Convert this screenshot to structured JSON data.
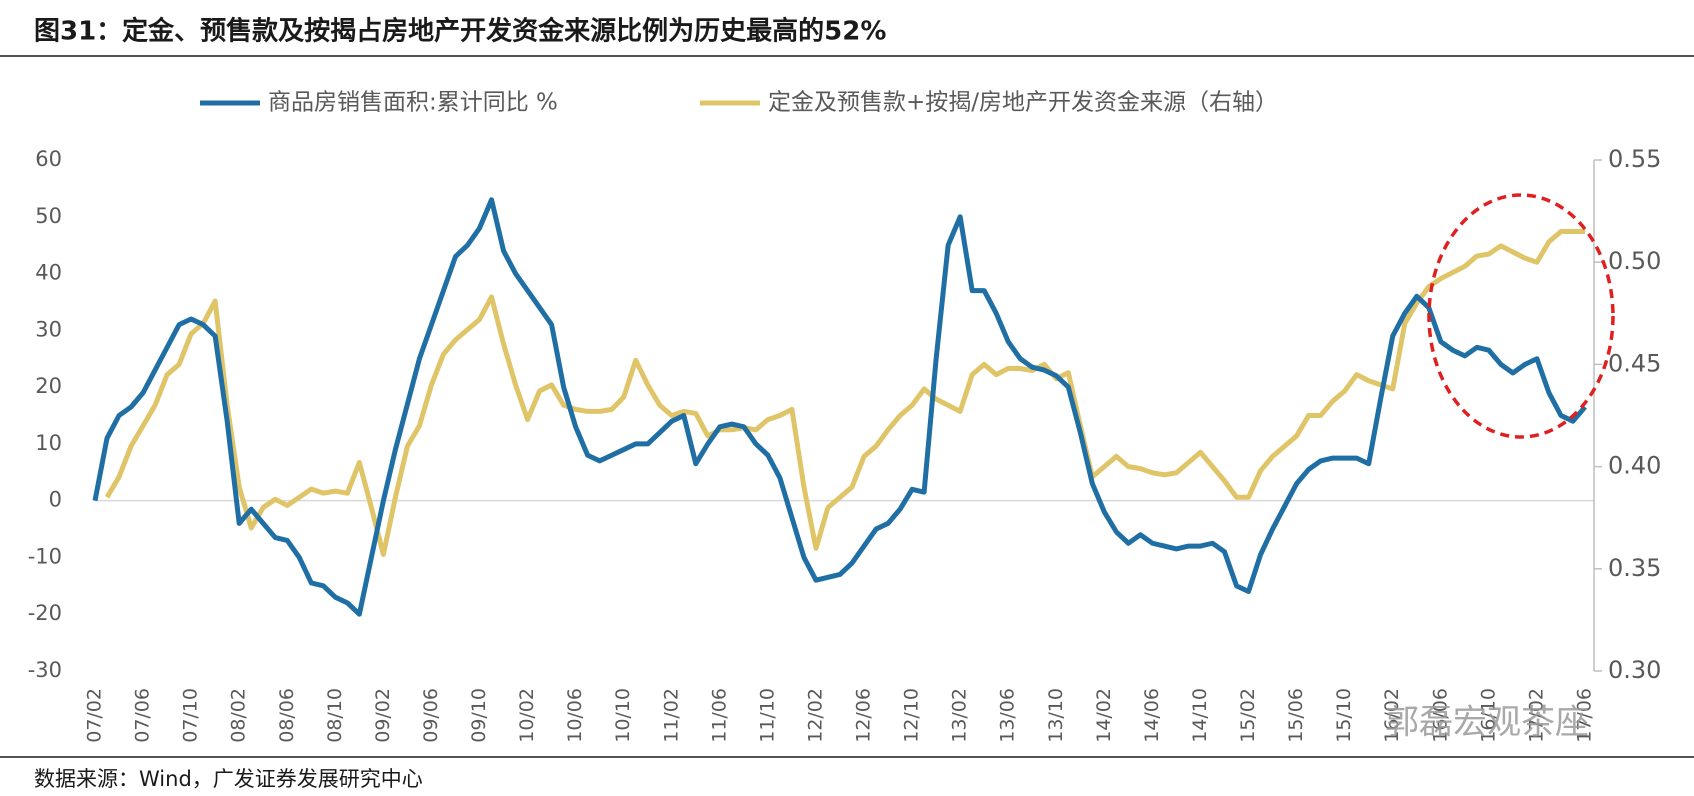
{
  "chart_data": {
    "type": "line",
    "title": "图31：定金、预售款及按揭占房地产开发资金来源比例为历史最高的52%",
    "source": "数据来源：Wind，广发证券发展研究中心",
    "watermark": "郭磊宏观茶座",
    "categories": [
      "07/02",
      null,
      null,
      null,
      "07/06",
      null,
      null,
      null,
      "07/10",
      null,
      null,
      null,
      "08/02",
      null,
      null,
      null,
      "08/06",
      null,
      null,
      null,
      "08/10",
      null,
      null,
      null,
      "09/02",
      null,
      null,
      null,
      "09/06",
      null,
      null,
      null,
      "09/10",
      null,
      null,
      null,
      "10/02",
      null,
      null,
      null,
      "10/06",
      null,
      null,
      null,
      "10/10",
      null,
      null,
      null,
      "11/02",
      null,
      null,
      null,
      "11/06",
      null,
      null,
      null,
      "11/10",
      null,
      null,
      null,
      "12/02",
      null,
      null,
      null,
      "12/06",
      null,
      null,
      null,
      "12/10",
      null,
      null,
      null,
      "13/02",
      null,
      null,
      null,
      "13/06",
      null,
      null,
      null,
      "13/10",
      null,
      null,
      null,
      "14/02",
      null,
      null,
      null,
      "14/06",
      null,
      null,
      null,
      "14/10",
      null,
      null,
      null,
      "15/02",
      null,
      null,
      null,
      "15/06",
      null,
      null,
      null,
      "15/10",
      null,
      null,
      null,
      "16/02",
      null,
      null,
      null,
      "16/06",
      null,
      null,
      null,
      "16/10",
      null,
      null,
      null,
      "17/02",
      null,
      null,
      null,
      "17/06"
    ],
    "series": [
      {
        "name": "商品房销售面积:累计同比 %",
        "color": "#1f6fa5",
        "axis": "y",
        "values": [
          0,
          11,
          15,
          16.5,
          19,
          23,
          27,
          31,
          32,
          31,
          29,
          14,
          -4,
          -1.5,
          -4,
          -6.5,
          -7,
          -10,
          -14.5,
          -15,
          -17,
          -18,
          -20,
          -10,
          0,
          9,
          17,
          25,
          31,
          37,
          43,
          45,
          48,
          53,
          44,
          40,
          37,
          34,
          31,
          20,
          13,
          8,
          7,
          8,
          9,
          10,
          10,
          12,
          14,
          15,
          6.5,
          10,
          13,
          13.5,
          13,
          10,
          8,
          4,
          -3,
          -10,
          -14,
          -13.5,
          -13,
          -11,
          -8,
          -5,
          -4,
          -1.5,
          2,
          1.5,
          25,
          45,
          50,
          37,
          37,
          33,
          28,
          25,
          23.5,
          23,
          22,
          20,
          12,
          3,
          -2,
          -5.5,
          -7.5,
          -6,
          -7.5,
          -8,
          -8.5,
          -8,
          -8,
          -7.5,
          -9,
          -15,
          -16,
          -9.5,
          -5,
          -1,
          3,
          5.5,
          7,
          7.5,
          7.5,
          7.5,
          6.5,
          18,
          29,
          33,
          36,
          34,
          28,
          26.5,
          25.5,
          27,
          26.5,
          24,
          22.5,
          24,
          25,
          19,
          15,
          14,
          16.5
        ]
      },
      {
        "name": "定金及预售款+按揭/房地产开发资金来源（右轴）",
        "color": "#e0c468",
        "axis": "y2",
        "values": [
          null,
          0.385,
          0.395,
          0.41,
          0.42,
          0.43,
          0.445,
          0.45,
          0.465,
          0.47,
          0.481,
          0.43,
          0.39,
          0.37,
          0.38,
          0.384,
          0.381,
          0.385,
          0.389,
          0.387,
          0.388,
          0.387,
          0.402,
          0.38,
          0.357,
          0.385,
          0.41,
          0.42,
          0.44,
          0.455,
          0.462,
          0.467,
          0.472,
          0.483,
          0.46,
          0.44,
          0.423,
          0.437,
          0.44,
          0.43,
          0.428,
          0.427,
          0.427,
          0.428,
          0.434,
          0.452,
          0.44,
          0.43,
          0.425,
          0.427,
          0.426,
          0.415,
          0.418,
          0.418,
          0.419,
          0.418,
          0.423,
          0.425,
          0.428,
          0.39,
          0.36,
          0.38,
          0.385,
          0.39,
          0.405,
          0.41,
          0.418,
          0.425,
          0.43,
          0.438,
          0.433,
          0.43,
          0.427,
          0.445,
          0.45,
          0.445,
          0.448,
          0.448,
          0.447,
          0.45,
          0.443,
          0.446,
          0.42,
          0.395,
          0.4,
          0.405,
          0.4,
          0.399,
          0.397,
          0.396,
          0.397,
          0.402,
          0.407,
          0.4,
          0.393,
          0.385,
          0.385,
          0.398,
          0.405,
          0.41,
          0.415,
          0.425,
          0.425,
          0.432,
          0.437,
          0.445,
          0.442,
          0.44,
          0.438,
          0.47,
          0.48,
          0.488,
          0.492,
          0.495,
          0.498,
          0.503,
          0.504,
          0.508,
          0.505,
          0.502,
          0.5,
          0.51,
          0.515,
          0.515,
          0.515
        ]
      }
    ],
    "ylim": [
      -30,
      60
    ],
    "yticks": [
      -30,
      -20,
      -10,
      0,
      10,
      20,
      30,
      40,
      50,
      60
    ],
    "y2lim": [
      0.3,
      0.55
    ],
    "y2ticks": [
      {
        "value": 0.3,
        "label": "0.30"
      },
      0.35,
      {
        "value": 0.4,
        "label": "0.40"
      },
      0.45,
      {
        "value": 0.5,
        "label": "0.50"
      },
      0.55
    ],
    "legend": "top"
  }
}
